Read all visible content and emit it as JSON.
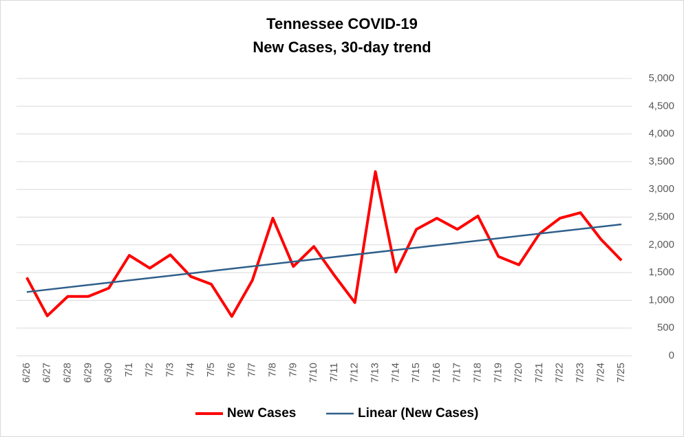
{
  "chart_data": {
    "type": "line",
    "title": "Tennessee COVID-19",
    "subtitle": "New Cases, 30-day trend",
    "categories": [
      "6/26",
      "6/27",
      "6/28",
      "6/29",
      "6/30",
      "7/1",
      "7/2",
      "7/3",
      "7/4",
      "7/5",
      "7/6",
      "7/7",
      "7/8",
      "7/9",
      "7/10",
      "7/11",
      "7/12",
      "7/13",
      "7/14",
      "7/15",
      "7/16",
      "7/17",
      "7/18",
      "7/19",
      "7/20",
      "7/21",
      "7/22",
      "7/23",
      "7/24",
      "7/25"
    ],
    "series": [
      {
        "name": "New Cases",
        "color": "#ff0000",
        "values": [
          1410,
          720,
          1070,
          1070,
          1220,
          1810,
          1580,
          1820,
          1430,
          1290,
          710,
          1360,
          2480,
          1610,
          1970,
          1450,
          960,
          3320,
          1510,
          2280,
          2480,
          2280,
          2520,
          1790,
          1640,
          2200,
          2480,
          2580,
          2100,
          1720
        ]
      }
    ],
    "trend": {
      "name": "Linear (New Cases)",
      "color": "#2e5f8a",
      "values": [
        1150,
        2370
      ]
    },
    "ylim": [
      0,
      5000
    ],
    "yticks": [
      0,
      500,
      {
        "value": 1000,
        "label": "1,000"
      },
      {
        "value": 1500,
        "label": "1,500"
      },
      {
        "value": 2000,
        "label": "2,000"
      },
      {
        "value": 2500,
        "label": "2,500"
      },
      {
        "value": 3000,
        "label": "3,000"
      },
      {
        "value": 3500,
        "label": "3,500"
      },
      {
        "value": 4000,
        "label": "4,000"
      },
      {
        "value": 4500,
        "label": "4,500"
      },
      {
        "value": 5000,
        "label": "5,000"
      }
    ],
    "grid": true,
    "legend": "bottom"
  }
}
